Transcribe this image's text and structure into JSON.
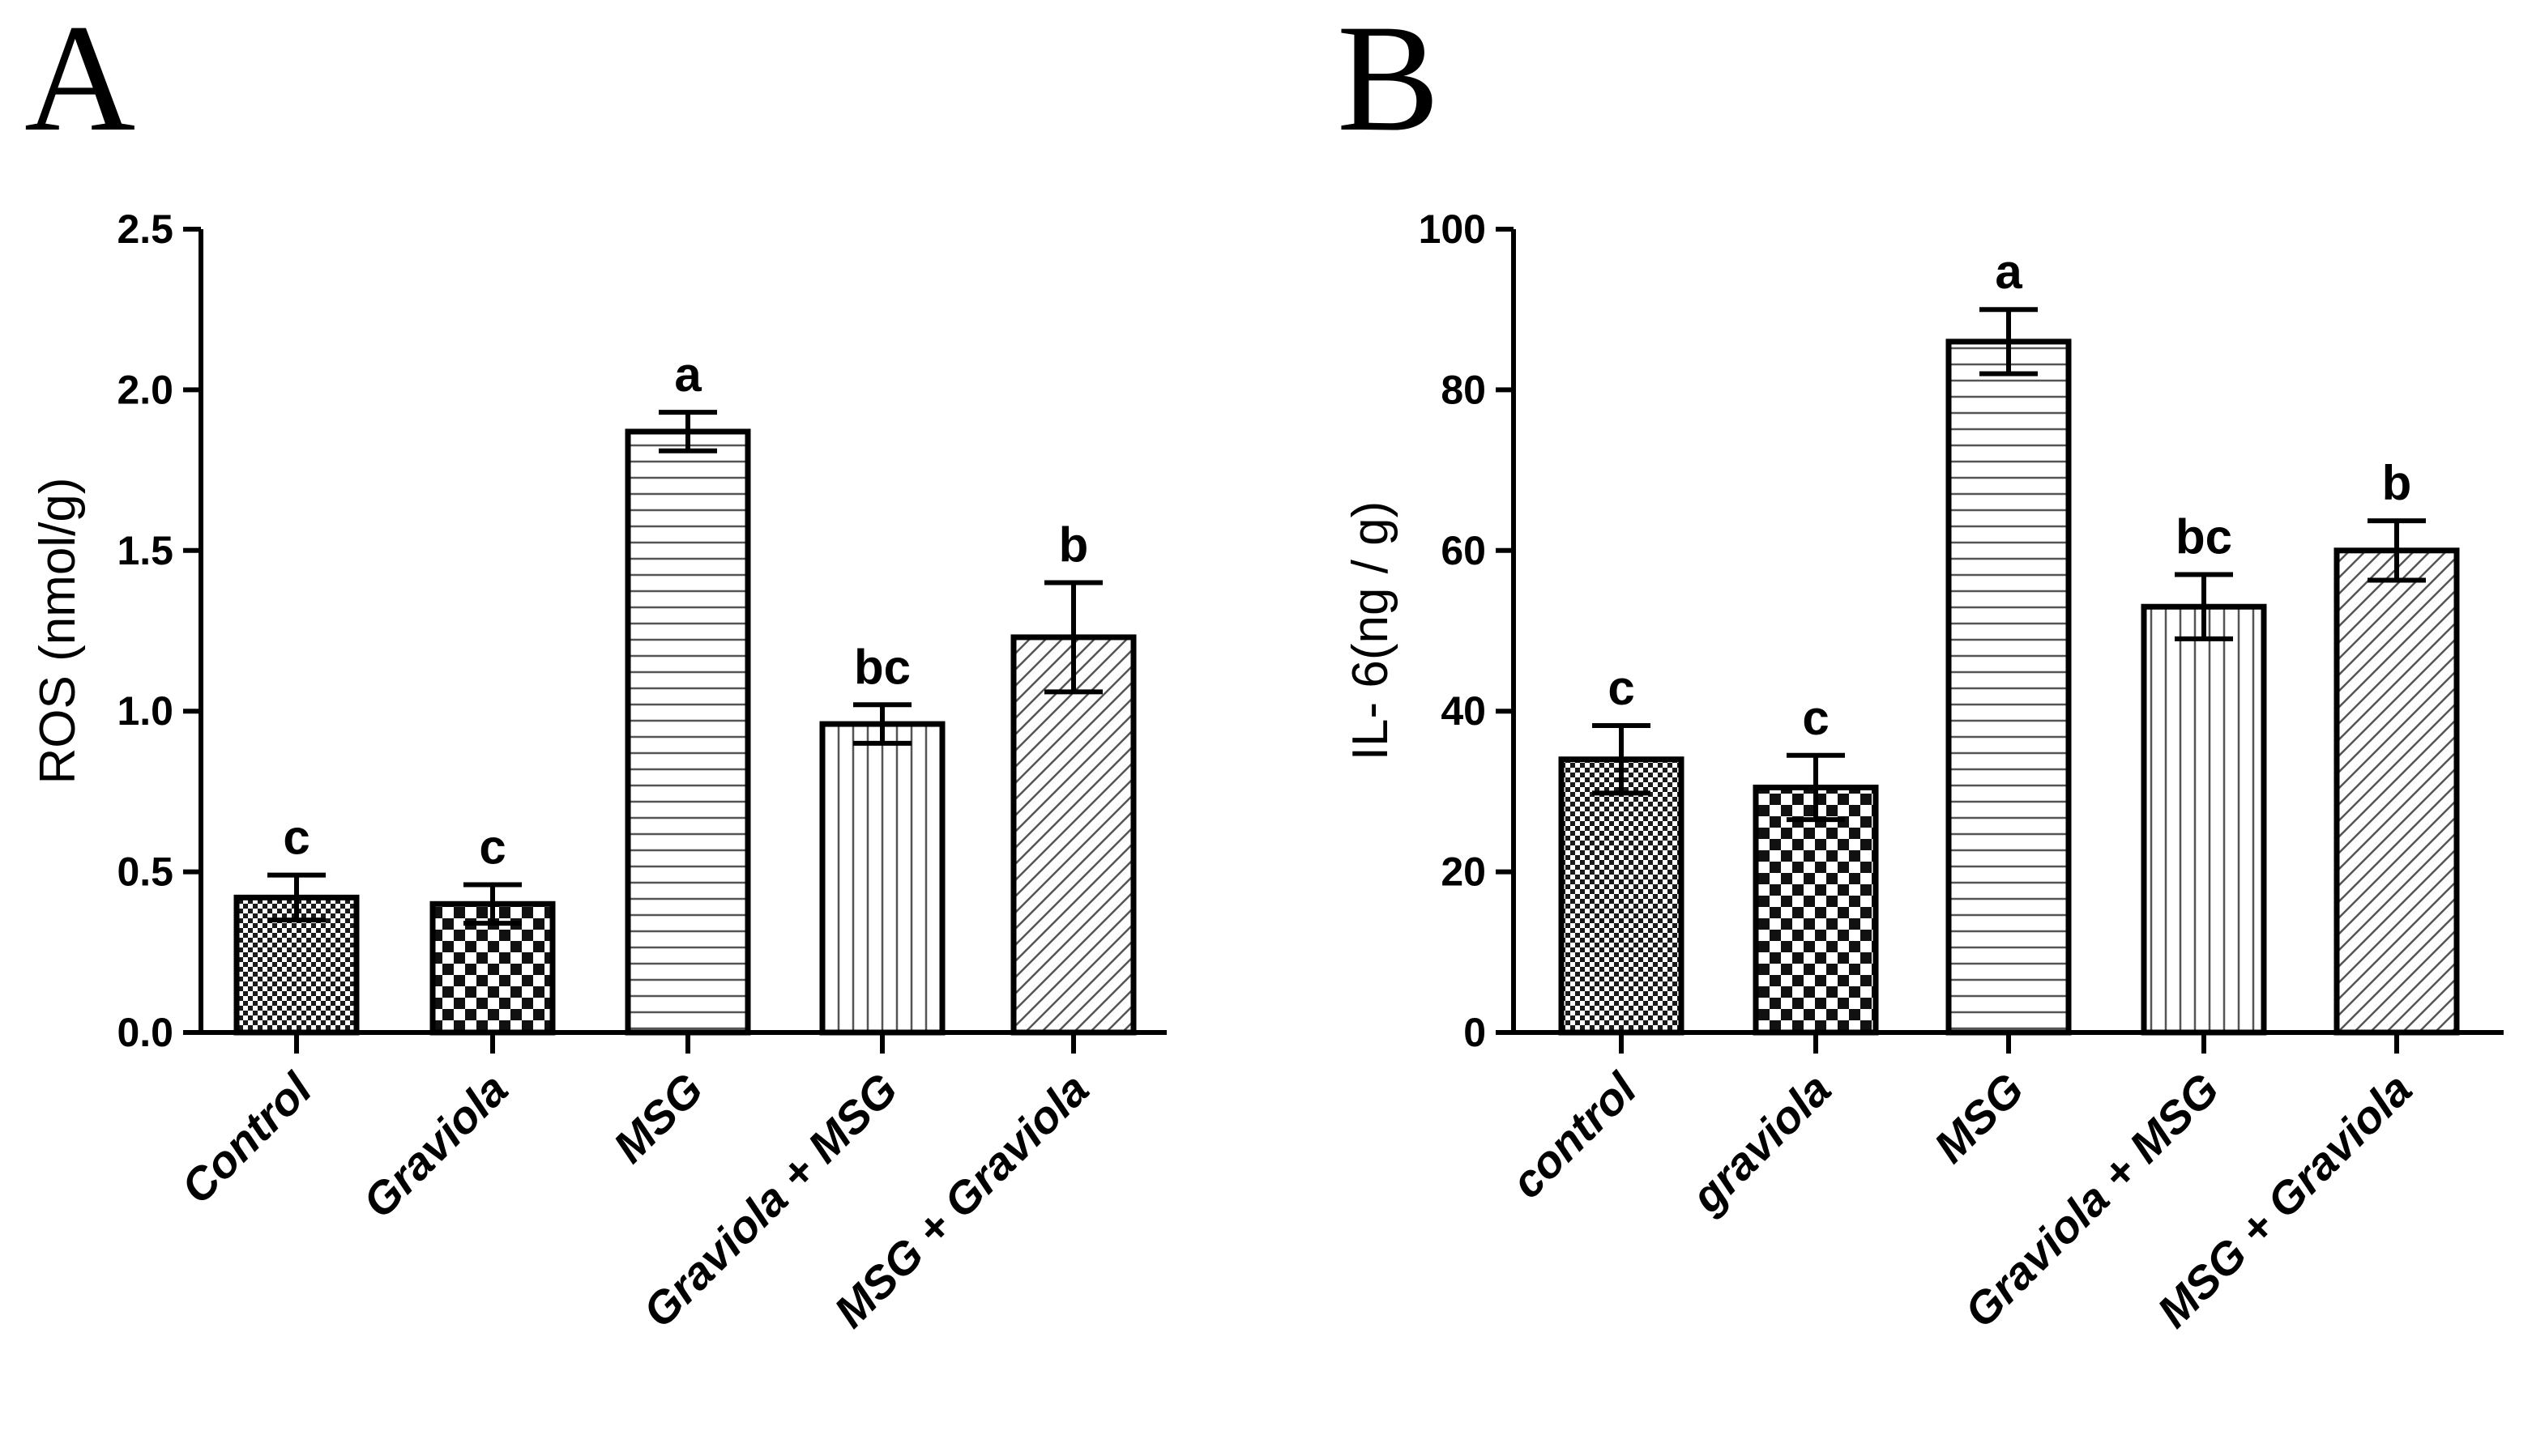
{
  "chart_data": [
    {
      "type": "bar",
      "panel_label": "A",
      "ylabel": "ROS (nmol/g)",
      "xlabel": "",
      "ylim": [
        0,
        2.5
      ],
      "yticks": [
        0.0,
        0.5,
        1.0,
        1.5,
        2.0,
        2.5
      ],
      "ytick_labels": [
        "0.0",
        "0.5",
        "1.0",
        "1.5",
        "2.0",
        "2.5"
      ],
      "categories": [
        "Control",
        "Graviola",
        "MSG",
        "Graviola + MSG",
        "MSG + Graviola"
      ],
      "values": [
        0.42,
        0.4,
        1.87,
        0.96,
        1.23
      ],
      "errors": [
        0.07,
        0.06,
        0.06,
        0.06,
        0.17
      ],
      "significance": [
        "c",
        "c",
        "a",
        "bc",
        "b"
      ],
      "patterns": [
        "fine-check",
        "checker",
        "horizontal",
        "vertical",
        "diagonal"
      ]
    },
    {
      "type": "bar",
      "panel_label": "B",
      "ylabel": "IL- 6(ng / g)",
      "xlabel": "",
      "ylim": [
        0,
        100
      ],
      "yticks": [
        0,
        20,
        40,
        60,
        80,
        100
      ],
      "ytick_labels": [
        "0",
        "20",
        "40",
        "60",
        "80",
        "100"
      ],
      "categories": [
        "control",
        "graviola",
        "MSG",
        "Graviola + MSG",
        "MSG + Graviola"
      ],
      "values": [
        34,
        30.5,
        86,
        53,
        60
      ],
      "errors": [
        4.2,
        4.0,
        4.0,
        4.0,
        3.7
      ],
      "significance": [
        "c",
        "c",
        "a",
        "bc",
        "b"
      ],
      "patterns": [
        "fine-check",
        "checker",
        "horizontal",
        "vertical",
        "diagonal"
      ]
    }
  ]
}
